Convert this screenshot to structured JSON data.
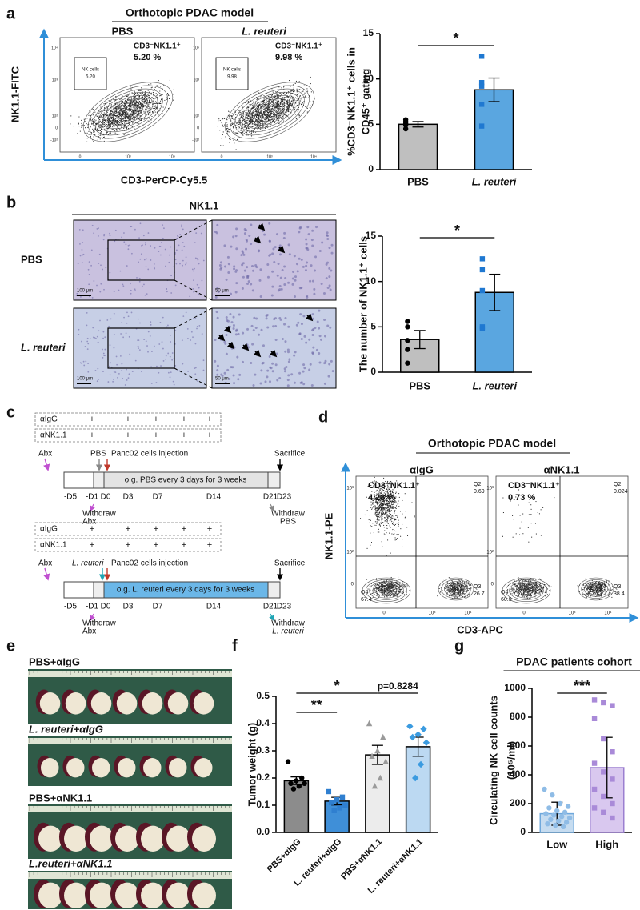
{
  "panel_labels": [
    "a",
    "b",
    "c",
    "d",
    "e",
    "f",
    "g"
  ],
  "flow_a": {
    "title": "Orthotopic PDAC model",
    "y_axis": "NK1.1-FITC",
    "x_axis": "CD3-PerCP-Cy5.5",
    "yticks": [
      "10⁴",
      "10³",
      "10²",
      "0",
      "-10²"
    ],
    "xticks": [
      "0",
      "10³",
      "10⁴"
    ],
    "plots": [
      {
        "name": "PBS",
        "population": "CD3⁻NK1.1⁺",
        "percent": "5.20 %",
        "gate": "NK cells",
        "gate_value": "5.20"
      },
      {
        "name": "L. reuteri",
        "population": "CD3⁻NK1.1⁺",
        "percent": "9.98 %",
        "gate": "NK cells",
        "gate_value": "9.98"
      }
    ]
  },
  "ihc": {
    "title": "NK1.1",
    "rows": [
      "PBS",
      "L. reuteri"
    ],
    "scale_bars": [
      "100 μm",
      "50 μm"
    ]
  },
  "timeline": [
    {
      "rows": [
        {
          "label": "αIgG",
          "marks": [
            "+",
            "+",
            "+",
            "+",
            "+"
          ]
        },
        {
          "label": "αNK1.1",
          "marks": [
            "+",
            "+",
            "+",
            "+",
            "+"
          ]
        }
      ],
      "abx": "Abx",
      "treatment": "PBS",
      "injection": "Panc02 cells injection",
      "end": "Sacrifice",
      "bar": "o.g. PBS every 3 days for 3 weeks",
      "days": [
        "-D5",
        "-D1",
        "D0",
        "D3",
        "D7",
        "D14",
        "D21",
        "D23"
      ],
      "withdraw_abx": [
        "Withdraw",
        "Abx"
      ],
      "withdraw_end": [
        "Withdraw",
        "PBS"
      ]
    },
    {
      "rows": [
        {
          "label": "αIgG",
          "marks": [
            "+",
            "+",
            "+",
            "+",
            "+"
          ]
        },
        {
          "label": "αNK1.1",
          "marks": [
            "+",
            "+",
            "+",
            "+",
            "+"
          ]
        }
      ],
      "abx": "Abx",
      "treatment": "L. reuteri",
      "injection": "Panc02 cells injection",
      "end": "Sacrifice",
      "bar": "o.g. L. reuteri every 3 days for 3 weeks",
      "days": [
        "-D5",
        "-D1",
        "D0",
        "D3",
        "D7",
        "D14",
        "D21",
        "D23"
      ],
      "withdraw_abx": [
        "Withdraw",
        "Abx"
      ],
      "withdraw_end": [
        "Withdraw",
        "L. reuteri"
      ]
    }
  ],
  "flow_d": {
    "title": "Orthotopic PDAC model",
    "y_axis": "NK1.1-PE",
    "x_axis": "CD3-APC",
    "yticks": [
      "10³",
      "10²",
      "0"
    ],
    "xticks": [
      "0",
      "10³",
      "10⁴"
    ],
    "plots": [
      {
        "name": "αIgG",
        "population": "CD3⁻NK1.1⁺",
        "percent": "4.28 %",
        "quadrants": [
          {
            "name": "Q2",
            "value": "0.69"
          },
          {
            "name": "Q4",
            "value": "67.4"
          },
          {
            "name": "Q3",
            "value": "26.7"
          }
        ]
      },
      {
        "name": "αNK1.1",
        "population": "CD3⁻NK1.1⁺",
        "percent": "0.73 %",
        "quadrants": [
          {
            "name": "Q2",
            "value": "0.024"
          },
          {
            "name": "Q4",
            "value": "60.9"
          },
          {
            "name": "Q3",
            "value": "38.4"
          }
        ]
      }
    ]
  },
  "photos": {
    "labels": [
      "PBS+αIgG",
      "L. reuteri+αIgG",
      "PBS+αNK1.1",
      "L.reuteri+αNK1.1"
    ]
  },
  "chart_data": [
    {
      "type": "bar",
      "ylabel": [
        "%CD3⁻NK1.1⁺ cells in",
        "CD45⁺ gating"
      ],
      "categories": [
        "PBS",
        "L. reuteri"
      ],
      "values": [
        5.0,
        8.8
      ],
      "errors": [
        0.3,
        1.3
      ],
      "points": [
        [
          4.5,
          4.9,
          5.1,
          5.3,
          5.5
        ],
        [
          12.5,
          9.6,
          9.2,
          7.2,
          4.8
        ]
      ],
      "colors": [
        "#bfbfbf",
        "#5aa6e0"
      ],
      "edge_colors": [
        "#000000",
        "#000000"
      ],
      "point_colors": [
        "#000000",
        "#1f78d1"
      ],
      "markers": [
        "circle",
        "square"
      ],
      "ylim": [
        0,
        15
      ],
      "yticks": [
        0,
        5,
        10,
        15
      ],
      "annotations": [
        "*"
      ]
    },
    {
      "type": "bar",
      "ylabel": [
        "The number of NK1.1⁺ cells"
      ],
      "categories": [
        "PBS",
        "L. reuteri"
      ],
      "values": [
        3.6,
        8.8
      ],
      "errors": [
        1.0,
        2.0
      ],
      "points": [
        [
          5.6,
          5.0,
          3.5,
          2.5,
          1.0
        ],
        [
          12.5,
          11.3,
          9.0,
          5.0,
          4.8
        ]
      ],
      "colors": [
        "#bfbfbf",
        "#5aa6e0"
      ],
      "edge_colors": [
        "#000000",
        "#000000"
      ],
      "point_colors": [
        "#000000",
        "#1f78d1"
      ],
      "markers": [
        "circle",
        "square"
      ],
      "ylim": [
        0,
        15
      ],
      "yticks": [
        0,
        5,
        10,
        15
      ],
      "annotations": [
        "*"
      ]
    },
    {
      "type": "bar",
      "ylabel": [
        "Tumor weight (g)"
      ],
      "categories": [
        "PBS+αIgG",
        "L. reuteri+αIgG",
        "PBS+αNK1.1",
        "L. reuteri+αNK1.1"
      ],
      "values": [
        0.19,
        0.115,
        0.285,
        0.315
      ],
      "errors": [
        0.014,
        0.014,
        0.035,
        0.035
      ],
      "points": [
        [
          0.26,
          0.2,
          0.19,
          0.18,
          0.18,
          0.17,
          0.16
        ],
        [
          0.15,
          0.13,
          0.12,
          0.11,
          0.1,
          0.09,
          0.08
        ],
        [
          0.4,
          0.35,
          0.3,
          0.28,
          0.26,
          0.2,
          0.17
        ],
        [
          0.39,
          0.38,
          0.36,
          0.35,
          0.33,
          0.25,
          0.2
        ]
      ],
      "colors": [
        "#8c8c8c",
        "#3f8fd8",
        "#ececec",
        "#bcd9f2"
      ],
      "edge_colors": [
        "#000000",
        "#000000",
        "#000000",
        "#000000"
      ],
      "point_colors": [
        "#000000",
        "#2f7fd0",
        "#9a9a9a",
        "#3b9be0"
      ],
      "markers": [
        "circle",
        "square",
        "triangle",
        "diamond"
      ],
      "ylim": [
        0,
        0.5
      ],
      "yticks": [
        {
          "value": 0,
          "label": "0.0"
        },
        0.1,
        0.2,
        0.3,
        0.4,
        0.5
      ],
      "annotations": [
        "**",
        "*",
        "p=0.8284"
      ]
    },
    {
      "type": "bar",
      "title": "PDAC patients cohort",
      "ylabel": [
        "Circulating NK cell counts",
        "(10⁵/ml)"
      ],
      "categories": [
        "Low",
        "High"
      ],
      "values": [
        130,
        450
      ],
      "errors": [
        80,
        210
      ],
      "points": [
        [
          300,
          260,
          200,
          180,
          170,
          150,
          140,
          130,
          120,
          110,
          100,
          90,
          80,
          70,
          60,
          50,
          40
        ],
        [
          920,
          900,
          880,
          790,
          650,
          560,
          480,
          420,
          370,
          300,
          250,
          200,
          170,
          140,
          100
        ]
      ],
      "colors": [
        "#c6dcf0",
        "#d9c8ef"
      ],
      "edge_colors": [
        "#6fa8dc",
        "#9b7fd0"
      ],
      "point_colors": [
        "#8fbce6",
        "#a98ad8"
      ],
      "markers": [
        "circle",
        "square"
      ],
      "ylim": [
        0,
        1000
      ],
      "yticks": [
        0,
        200,
        400,
        600,
        800,
        1000
      ],
      "annotations": [
        "***"
      ]
    }
  ]
}
